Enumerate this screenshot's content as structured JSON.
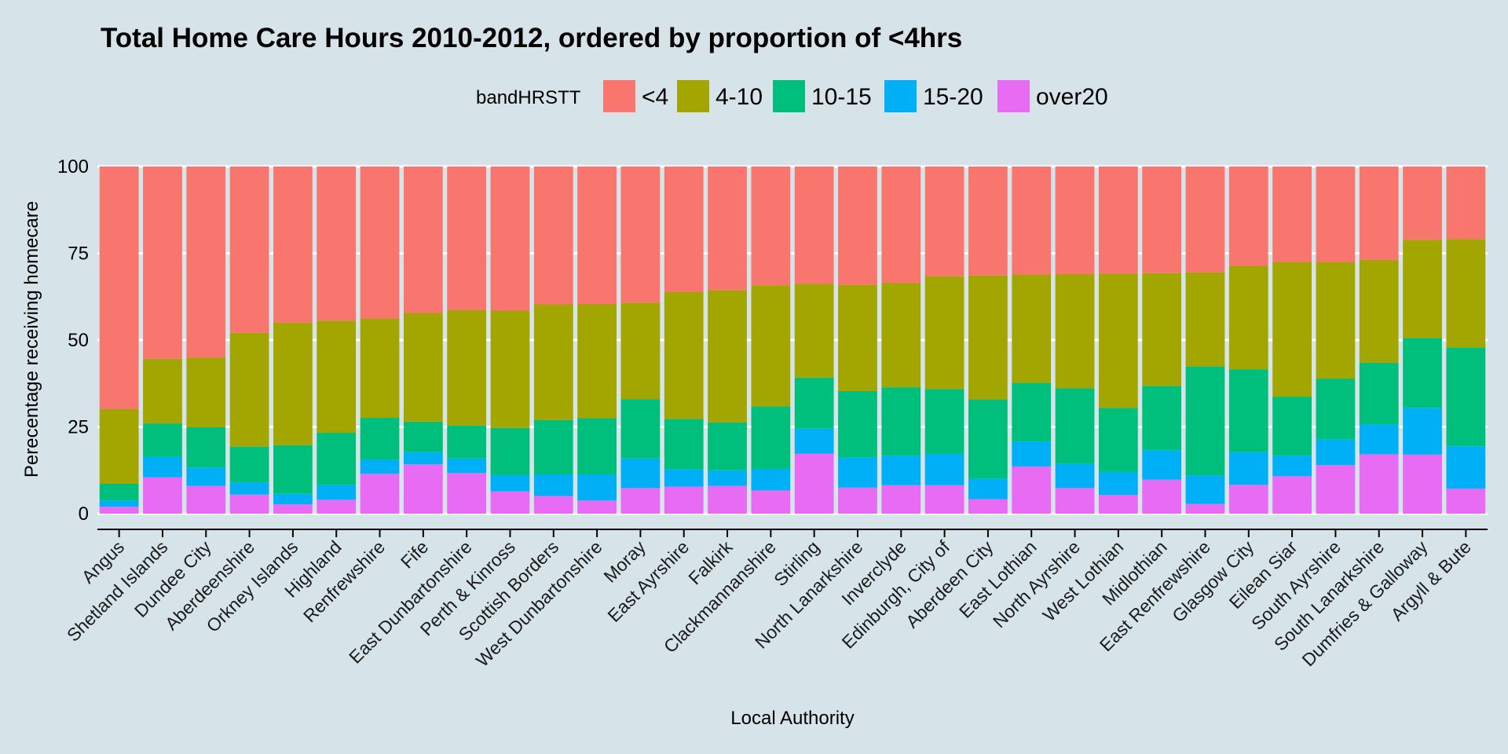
{
  "chart_data": {
    "type": "bar",
    "stacked": true,
    "title": "Total Home Care Hours 2010-2012, ordered by proportion of <4hrs",
    "xlabel": "Local Authority",
    "ylabel": "Perecentage receiving homecare",
    "ylim": [
      0,
      100
    ],
    "yticks": [
      0,
      25,
      50,
      75,
      100
    ],
    "grid": true,
    "legend": {
      "title": "bandHRSTT",
      "position": "top"
    },
    "categories": [
      "Angus",
      "Shetland Islands",
      "Dundee City",
      "Aberdeenshire",
      "Orkney Islands",
      "Highland",
      "Renfrewshire",
      "Fife",
      "East Dunbartonshire",
      "Perth & Kinross",
      "Scottish Borders",
      "West Dunbartonshire",
      "Moray",
      "East Ayrshire",
      "Falkirk",
      "Clackmannanshire",
      "Stirling",
      "North Lanarkshire",
      "Inverclyde",
      "Edinburgh, City of",
      "Aberdeen City",
      "East Lothian",
      "North Ayrshire",
      "West Lothian",
      "Midlothian",
      "East Renfrewshire",
      "Glasgow City",
      "Eilean Siar",
      "South Ayrshire",
      "South Lanarkshire",
      "Dumfries & Galloway",
      "Argyll & Bute"
    ],
    "series": [
      {
        "name": "over20",
        "color": "#e76bf3",
        "values": [
          2,
          10.5,
          8,
          5.5,
          2.7,
          4,
          11.5,
          14.2,
          11.7,
          6.4,
          5.1,
          3.8,
          7.4,
          7.8,
          8,
          6.7,
          17.3,
          7.5,
          8.2,
          8.2,
          4.2,
          13.6,
          7.4,
          5.4,
          9.8,
          2.8,
          8.3,
          10.8,
          14,
          17.1,
          17,
          7.2
        ]
      },
      {
        "name": "15-20",
        "color": "#00b0f6",
        "values": [
          1.8,
          5.9,
          5.3,
          3.5,
          3,
          4.3,
          4.1,
          3.5,
          4.2,
          4.7,
          6.2,
          7.5,
          8.5,
          5,
          4.5,
          6.2,
          7.2,
          8.7,
          8.5,
          9,
          5.9,
          7.2,
          7,
          6.6,
          8.5,
          8.2,
          9.4,
          5.9,
          7.4,
          8.6,
          13.5,
          12.2
        ]
      },
      {
        "name": "10-15",
        "color": "#00bf7d",
        "values": [
          4.8,
          9.6,
          11.6,
          10.3,
          14,
          15,
          12,
          8.8,
          9.5,
          13.6,
          15.7,
          16.2,
          17.1,
          14.5,
          13.8,
          18,
          14.7,
          19.1,
          19.7,
          18.7,
          22.8,
          16.9,
          21.7,
          18.5,
          18.5,
          31.4,
          23.9,
          17,
          17.5,
          17.8,
          20.1,
          28.5
        ]
      },
      {
        "name": "4-10",
        "color": "#a3a500",
        "values": [
          21.5,
          18.6,
          20,
          32.8,
          35.3,
          32.3,
          28.6,
          31.3,
          33.2,
          33.8,
          33.3,
          32.9,
          27.8,
          36.5,
          38.1,
          34.9,
          27,
          30.6,
          30.1,
          32.5,
          35.7,
          31.2,
          32.9,
          38.6,
          32.5,
          27.1,
          29.8,
          38.8,
          33.6,
          29.6,
          28.3,
          31.2
        ]
      },
      {
        "name": "<4",
        "color": "#f8766d",
        "values": [
          69.9,
          55.4,
          55.1,
          47.9,
          45,
          44.4,
          43.8,
          42.2,
          41.4,
          41.5,
          39.7,
          39.6,
          39.2,
          36.2,
          35.6,
          34.2,
          33.8,
          34.1,
          33.5,
          31.6,
          31.4,
          31.1,
          31,
          30.9,
          30.7,
          30.5,
          28.6,
          27.5,
          27.5,
          26.9,
          21.1,
          20.9
        ]
      }
    ],
    "legend_order": [
      "<4",
      "4-10",
      "10-15",
      "15-20",
      "over20"
    ]
  }
}
